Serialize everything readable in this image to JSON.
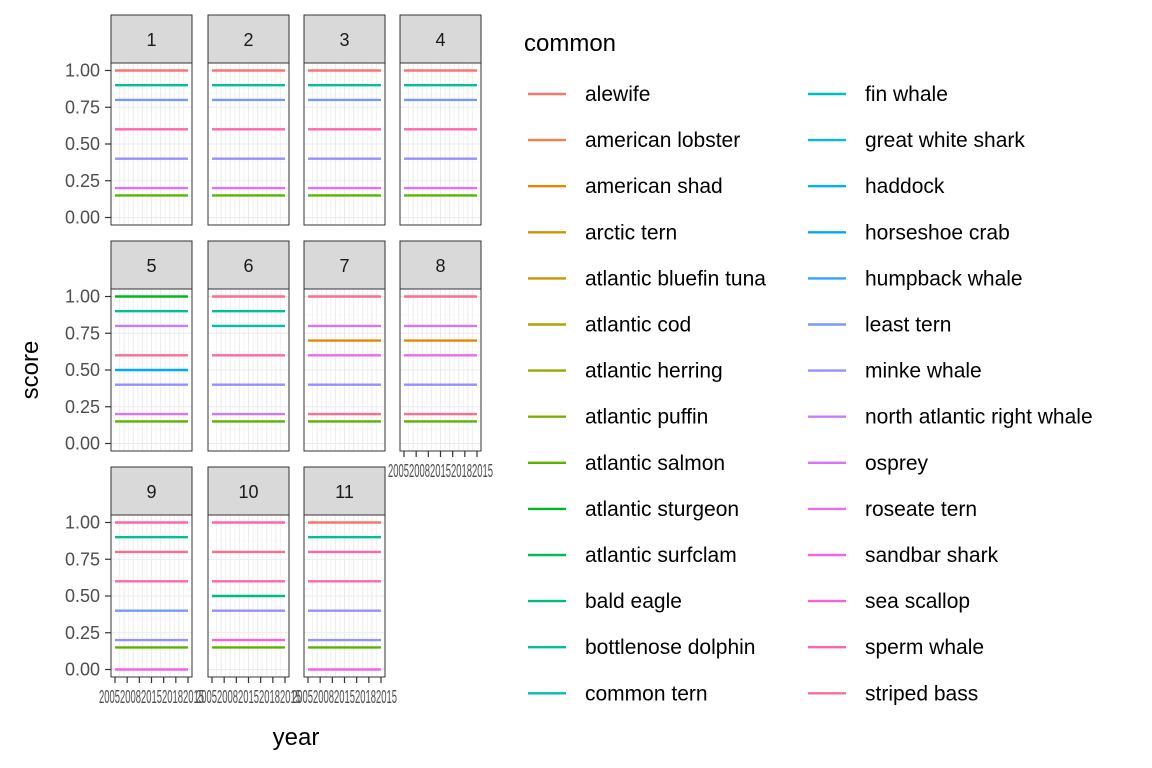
{
  "chart_data": {
    "type": "line",
    "xlabel": "year",
    "ylabel": "score",
    "ylim": [
      0,
      1
    ],
    "y_ticks": [
      "0.00",
      "0.25",
      "0.50",
      "0.75",
      "1.00"
    ],
    "x_tick_label_text": "20052008201520182015",
    "legend_title": "common",
    "legend_placement": "right",
    "grid": true,
    "panels": [
      "1",
      "2",
      "3",
      "4",
      "5",
      "6",
      "7",
      "8",
      "9",
      "10",
      "11"
    ],
    "species": [
      {
        "name": "alewife",
        "color": "#F8766D"
      },
      {
        "name": "american lobster",
        "color": "#F07F4B"
      },
      {
        "name": "american shad",
        "color": "#E58700"
      },
      {
        "name": "arctic tern",
        "color": "#D59000"
      },
      {
        "name": "atlantic bluefin tuna",
        "color": "#C49A00"
      },
      {
        "name": "atlantic cod",
        "color": "#B2A100"
      },
      {
        "name": "atlantic herring",
        "color": "#99A800"
      },
      {
        "name": "atlantic puffin",
        "color": "#7CAE00"
      },
      {
        "name": "atlantic salmon",
        "color": "#5BB300"
      },
      {
        "name": "atlantic sturgeon",
        "color": "#00B81F"
      },
      {
        "name": "atlantic surfclam",
        "color": "#00BA5A"
      },
      {
        "name": "bald eagle",
        "color": "#00BD7D"
      },
      {
        "name": "bottlenose dolphin",
        "color": "#00C097"
      },
      {
        "name": "common tern",
        "color": "#00BFAE"
      },
      {
        "name": "fin whale",
        "color": "#00BFC4"
      },
      {
        "name": "great white shark",
        "color": "#00BCD8"
      },
      {
        "name": "haddock",
        "color": "#00B5EA"
      },
      {
        "name": "horseshoe crab",
        "color": "#00A9FF"
      },
      {
        "name": "humpback whale",
        "color": "#35A2FF"
      },
      {
        "name": "least tern",
        "color": "#7799FF"
      },
      {
        "name": "minke whale",
        "color": "#9590FF"
      },
      {
        "name": "north atlantic right whale",
        "color": "#C77CFF"
      },
      {
        "name": "osprey",
        "color": "#D973FC"
      },
      {
        "name": "roseate tern",
        "color": "#EE6AEC"
      },
      {
        "name": "sandbar shark",
        "color": "#F564E3"
      },
      {
        "name": "sea scallop",
        "color": "#FA62D4"
      },
      {
        "name": "sperm whale",
        "color": "#FF65AC"
      },
      {
        "name": "striped bass",
        "color": "#FF6C91"
      }
    ],
    "series_by_panel": [
      {
        "panel": "1",
        "lines": [
          {
            "species": "alewife",
            "value": 1.0
          },
          {
            "species": "bottlenose dolphin",
            "value": 0.9
          },
          {
            "species": "least tern",
            "value": 0.8
          },
          {
            "species": "sperm whale",
            "value": 0.6
          },
          {
            "species": "minke whale",
            "value": 0.4
          },
          {
            "species": "osprey",
            "value": 0.2
          },
          {
            "species": "atlantic salmon",
            "value": 0.15
          }
        ]
      },
      {
        "panel": "2",
        "lines": [
          {
            "species": "alewife",
            "value": 1.0
          },
          {
            "species": "bottlenose dolphin",
            "value": 0.9
          },
          {
            "species": "least tern",
            "value": 0.8
          },
          {
            "species": "sperm whale",
            "value": 0.6
          },
          {
            "species": "minke whale",
            "value": 0.4
          },
          {
            "species": "osprey",
            "value": 0.2
          },
          {
            "species": "atlantic salmon",
            "value": 0.15
          }
        ]
      },
      {
        "panel": "3",
        "lines": [
          {
            "species": "alewife",
            "value": 1.0
          },
          {
            "species": "bottlenose dolphin",
            "value": 0.9
          },
          {
            "species": "least tern",
            "value": 0.8
          },
          {
            "species": "sperm whale",
            "value": 0.6
          },
          {
            "species": "minke whale",
            "value": 0.4
          },
          {
            "species": "osprey",
            "value": 0.2
          },
          {
            "species": "atlantic salmon",
            "value": 0.15
          }
        ]
      },
      {
        "panel": "4",
        "lines": [
          {
            "species": "alewife",
            "value": 1.0
          },
          {
            "species": "bottlenose dolphin",
            "value": 0.9
          },
          {
            "species": "least tern",
            "value": 0.8
          },
          {
            "species": "sperm whale",
            "value": 0.6
          },
          {
            "species": "minke whale",
            "value": 0.4
          },
          {
            "species": "osprey",
            "value": 0.2
          },
          {
            "species": "atlantic salmon",
            "value": 0.15
          }
        ]
      },
      {
        "panel": "5",
        "lines": [
          {
            "species": "atlantic sturgeon",
            "value": 1.0
          },
          {
            "species": "bottlenose dolphin",
            "value": 0.9
          },
          {
            "species": "north atlantic right whale",
            "value": 0.8
          },
          {
            "species": "striped bass",
            "value": 0.6
          },
          {
            "species": "horseshoe crab",
            "value": 0.5
          },
          {
            "species": "minke whale",
            "value": 0.4
          },
          {
            "species": "osprey",
            "value": 0.2
          },
          {
            "species": "atlantic salmon",
            "value": 0.15
          }
        ]
      },
      {
        "panel": "6",
        "lines": [
          {
            "species": "striped bass",
            "value": 1.0
          },
          {
            "species": "bottlenose dolphin",
            "value": 0.9
          },
          {
            "species": "common tern",
            "value": 0.8
          },
          {
            "species": "sperm whale",
            "value": 0.6
          },
          {
            "species": "minke whale",
            "value": 0.4
          },
          {
            "species": "north atlantic right whale",
            "value": 0.2
          },
          {
            "species": "atlantic salmon",
            "value": 0.15
          }
        ]
      },
      {
        "panel": "7",
        "lines": [
          {
            "species": "striped bass",
            "value": 1.0
          },
          {
            "species": "osprey",
            "value": 0.8
          },
          {
            "species": "american shad",
            "value": 0.7
          },
          {
            "species": "roseate tern",
            "value": 0.6
          },
          {
            "species": "minke whale",
            "value": 0.4
          },
          {
            "species": "striped bass",
            "value": 0.2
          },
          {
            "species": "atlantic salmon",
            "value": 0.15
          }
        ]
      },
      {
        "panel": "8",
        "lines": [
          {
            "species": "striped bass",
            "value": 1.0
          },
          {
            "species": "osprey",
            "value": 0.8
          },
          {
            "species": "american shad",
            "value": 0.7
          },
          {
            "species": "roseate tern",
            "value": 0.6
          },
          {
            "species": "minke whale",
            "value": 0.4
          },
          {
            "species": "striped bass",
            "value": 0.2
          },
          {
            "species": "atlantic salmon",
            "value": 0.15
          }
        ]
      },
      {
        "panel": "9",
        "lines": [
          {
            "species": "sperm whale",
            "value": 1.0
          },
          {
            "species": "bottlenose dolphin",
            "value": 0.9
          },
          {
            "species": "striped bass",
            "value": 0.8
          },
          {
            "species": "sperm whale",
            "value": 0.6
          },
          {
            "species": "least tern",
            "value": 0.4
          },
          {
            "species": "minke whale",
            "value": 0.2
          },
          {
            "species": "atlantic salmon",
            "value": 0.15
          },
          {
            "species": "sandbar shark",
            "value": 0.0
          }
        ]
      },
      {
        "panel": "10",
        "lines": [
          {
            "species": "sperm whale",
            "value": 1.0
          },
          {
            "species": "striped bass",
            "value": 0.8
          },
          {
            "species": "sperm whale",
            "value": 0.6
          },
          {
            "species": "bald eagle",
            "value": 0.5
          },
          {
            "species": "minke whale",
            "value": 0.4
          },
          {
            "species": "sea scallop",
            "value": 0.2
          },
          {
            "species": "atlantic salmon",
            "value": 0.15
          }
        ]
      },
      {
        "panel": "11",
        "lines": [
          {
            "species": "alewife",
            "value": 1.0
          },
          {
            "species": "bottlenose dolphin",
            "value": 0.9
          },
          {
            "species": "sperm whale",
            "value": 0.8
          },
          {
            "species": "sperm whale",
            "value": 0.6
          },
          {
            "species": "minke whale",
            "value": 0.4
          },
          {
            "species": "minke whale",
            "value": 0.2
          },
          {
            "species": "atlantic salmon",
            "value": 0.15
          },
          {
            "species": "sandbar shark",
            "value": 0.0
          }
        ]
      }
    ]
  }
}
